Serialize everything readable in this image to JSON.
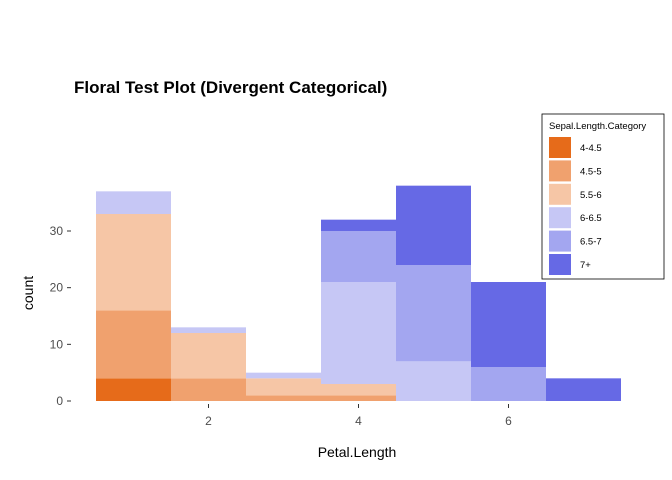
{
  "chart_data": {
    "type": "bar",
    "stacked": true,
    "title": "Floral Test Plot (Divergent Categorical)",
    "xlabel": "Petal.Length",
    "ylabel": "count",
    "x_ticks": [
      2,
      4,
      6
    ],
    "y_ticks": [
      0,
      10,
      20,
      30
    ],
    "xlim": [
      0.5,
      7.5
    ],
    "ylim": [
      0,
      38
    ],
    "bin_width": 1,
    "bin_centers": [
      1,
      2,
      3,
      4,
      5,
      6,
      7
    ],
    "grid": false,
    "legend": {
      "title": "Sepal.Length.Category",
      "position": "right"
    },
    "series": [
      {
        "name": "4-4.5",
        "color": "#E66B1A",
        "values": [
          4,
          0,
          0,
          0,
          0,
          0,
          0
        ]
      },
      {
        "name": "4.5-5",
        "color": "#F0A16E",
        "values": [
          12,
          4,
          1,
          1,
          0,
          0,
          0
        ]
      },
      {
        "name": "5.5-6",
        "color": "#F6C6A6",
        "values": [
          17,
          8,
          3,
          2,
          0,
          0,
          0
        ]
      },
      {
        "name": "6-6.5",
        "color": "#C6C7F5",
        "values": [
          4,
          1,
          1,
          18,
          7,
          0,
          0
        ]
      },
      {
        "name": "6.5-7",
        "color": "#A3A6F0",
        "values": [
          0,
          0,
          0,
          9,
          17,
          6,
          0
        ]
      },
      {
        "name": "7+",
        "color": "#6669E5",
        "values": [
          0,
          0,
          0,
          2,
          14,
          15,
          4
        ]
      }
    ]
  }
}
